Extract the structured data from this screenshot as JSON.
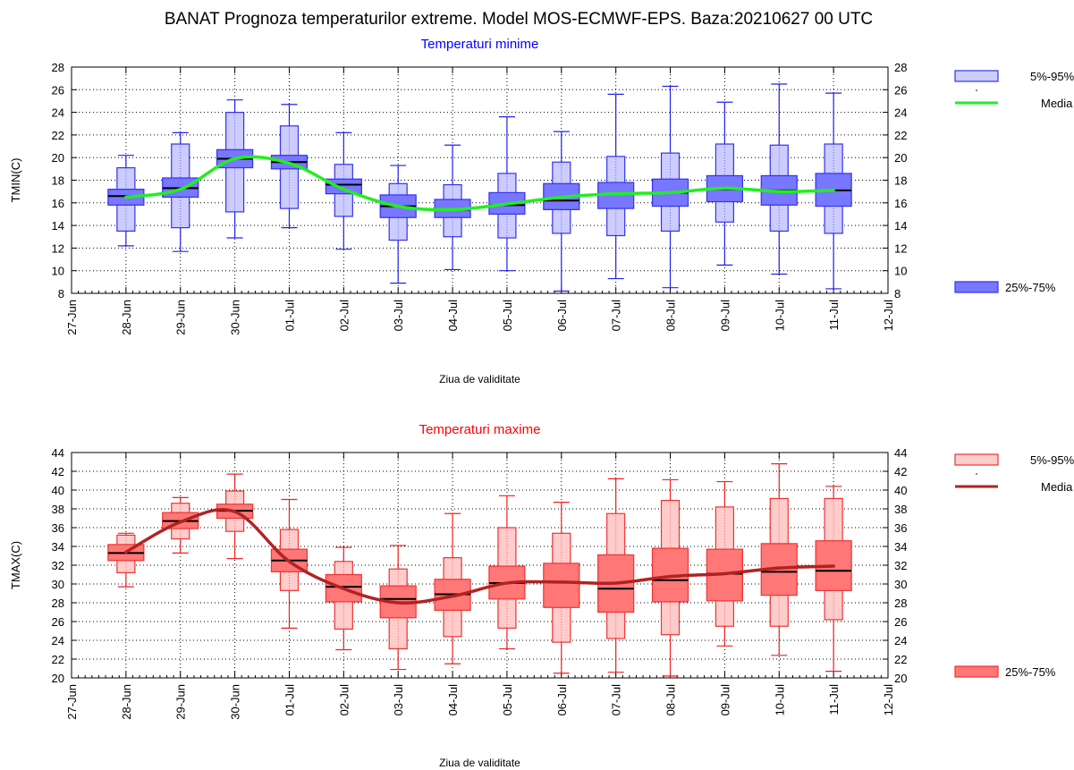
{
  "page_title": "BANAT  Prognoza temperaturilor extreme.  Model MOS-ECMWF-EPS. Baza:20210627 00 UTC",
  "chart_data": [
    {
      "type": "boxplot",
      "id": "tmin",
      "title": "Temperaturi minime",
      "title_color": "#0000ff",
      "xlabel": "Ziua de validitate",
      "ylabel": "TMIN(C)",
      "ylim": [
        8,
        28
      ],
      "yticks": [
        8,
        10,
        12,
        14,
        16,
        18,
        20,
        22,
        24,
        26,
        28
      ],
      "x_tick_labels": [
        "27-Jun",
        "28-Jun",
        "29-Jun",
        "30-Jun",
        "01-Jul",
        "02-Jul",
        "03-Jul",
        "04-Jul",
        "05-Jul",
        "06-Jul",
        "07-Jul",
        "08-Jul",
        "09-Jul",
        "10-Jul",
        "11-Jul",
        "12-Jul"
      ],
      "grid": true,
      "legend": [
        "5%-95%",
        "Media",
        "25%-75%"
      ],
      "colors": {
        "outer_fill": "#ccccff",
        "inner_fill": "#7777ff",
        "edge": "#3333ee",
        "whisker": "#2222ee",
        "mean_line": "#22ee22",
        "median": "#000000"
      },
      "boxes": [
        {
          "date": "28-Jun",
          "min": 12.2,
          "p5": 13.5,
          "p25": 15.8,
          "median": 16.6,
          "p75": 17.2,
          "p95": 19.1,
          "max": 20.2,
          "mean": 16.5
        },
        {
          "date": "29-Jun",
          "min": 11.7,
          "p5": 13.8,
          "p25": 16.5,
          "median": 17.3,
          "p75": 18.2,
          "p95": 21.2,
          "max": 22.2,
          "mean": 17.2
        },
        {
          "date": "30-Jun",
          "min": 12.9,
          "p5": 15.2,
          "p25": 19.1,
          "median": 19.9,
          "p75": 20.7,
          "p95": 24.0,
          "max": 25.1,
          "mean": 19.9
        },
        {
          "date": "01-Jul",
          "min": 13.8,
          "p5": 15.5,
          "p25": 19.0,
          "median": 19.6,
          "p75": 20.2,
          "p95": 22.8,
          "max": 24.7,
          "mean": 19.5
        },
        {
          "date": "02-Jul",
          "min": 11.9,
          "p5": 14.8,
          "p25": 16.8,
          "median": 17.6,
          "p75": 18.1,
          "p95": 19.4,
          "max": 22.2,
          "mean": 17.2
        },
        {
          "date": "03-Jul",
          "min": 8.9,
          "p5": 12.7,
          "p25": 14.7,
          "median": 15.7,
          "p75": 16.7,
          "p95": 17.7,
          "max": 19.3,
          "mean": 15.7
        },
        {
          "date": "04-Jul",
          "min": 10.1,
          "p5": 13.0,
          "p25": 14.7,
          "median": 15.4,
          "p75": 16.3,
          "p95": 17.6,
          "max": 21.1,
          "mean": 15.4
        },
        {
          "date": "05-Jul",
          "min": 10.0,
          "p5": 12.9,
          "p25": 15.0,
          "median": 15.8,
          "p75": 16.9,
          "p95": 18.6,
          "max": 23.6,
          "mean": 15.9
        },
        {
          "date": "06-Jul",
          "min": 8.2,
          "p5": 13.3,
          "p25": 15.4,
          "median": 16.2,
          "p75": 17.7,
          "p95": 19.6,
          "max": 22.3,
          "mean": 16.5
        },
        {
          "date": "07-Jul",
          "min": 9.3,
          "p5": 13.1,
          "p25": 15.5,
          "median": 16.8,
          "p75": 17.8,
          "p95": 20.1,
          "max": 25.6,
          "mean": 16.8
        },
        {
          "date": "08-Jul",
          "min": 8.5,
          "p5": 13.5,
          "p25": 15.7,
          "median": 16.9,
          "p75": 18.1,
          "p95": 20.4,
          "max": 26.3,
          "mean": 16.9
        },
        {
          "date": "09-Jul",
          "min": 10.5,
          "p5": 14.3,
          "p25": 16.1,
          "median": 17.2,
          "p75": 18.4,
          "p95": 21.2,
          "max": 24.9,
          "mean": 17.3
        },
        {
          "date": "10-Jul",
          "min": 9.7,
          "p5": 13.5,
          "p25": 15.8,
          "median": 17.1,
          "p75": 18.4,
          "p95": 21.1,
          "max": 26.5,
          "mean": 17.0
        },
        {
          "date": "11-Jul",
          "min": 8.4,
          "p5": 13.3,
          "p25": 15.7,
          "median": 17.1,
          "p75": 18.6,
          "p95": 21.2,
          "max": 25.7,
          "mean": 17.1
        }
      ]
    },
    {
      "type": "boxplot",
      "id": "tmax",
      "title": "Temperaturi maxime",
      "title_color": "#ff0000",
      "xlabel": "Ziua de validitate",
      "ylabel": "TMAX(C)",
      "ylim": [
        20,
        44
      ],
      "yticks": [
        20,
        22,
        24,
        26,
        28,
        30,
        32,
        34,
        36,
        38,
        40,
        42,
        44
      ],
      "x_tick_labels": [
        "27-Jun",
        "28-Jun",
        "29-Jun",
        "30-Jun",
        "01-Jul",
        "02-Jul",
        "03-Jul",
        "04-Jul",
        "05-Jul",
        "06-Jul",
        "07-Jul",
        "08-Jul",
        "09-Jul",
        "10-Jul",
        "11-Jul",
        "12-Jul"
      ],
      "grid": true,
      "legend": [
        "5%-95%",
        "Media",
        "25%-75%"
      ],
      "colors": {
        "outer_fill": "#ffcccc",
        "inner_fill": "#ff7777",
        "edge": "#ee3333",
        "whisker": "#ee2222",
        "mean_line": "#b22222",
        "median": "#000000"
      },
      "boxes": [
        {
          "date": "28-Jun",
          "min": 29.7,
          "p5": 31.2,
          "p25": 32.5,
          "median": 33.3,
          "p75": 34.2,
          "p95": 35.2,
          "max": 35.4,
          "mean": 33.4
        },
        {
          "date": "29-Jun",
          "min": 33.3,
          "p5": 34.8,
          "p25": 35.9,
          "median": 36.7,
          "p75": 37.6,
          "p95": 38.6,
          "max": 39.2,
          "mean": 36.6
        },
        {
          "date": "30-Jun",
          "min": 32.7,
          "p5": 35.6,
          "p25": 37.0,
          "median": 37.8,
          "p75": 38.5,
          "p95": 39.9,
          "max": 41.7,
          "mean": 37.7
        },
        {
          "date": "01-Jul",
          "min": 25.3,
          "p5": 29.3,
          "p25": 31.3,
          "median": 32.5,
          "p75": 33.7,
          "p95": 35.8,
          "max": 39.0,
          "mean": 32.4
        },
        {
          "date": "02-Jul",
          "min": 23.0,
          "p5": 25.2,
          "p25": 28.1,
          "median": 29.7,
          "p75": 31.0,
          "p95": 32.4,
          "max": 33.9,
          "mean": 29.5
        },
        {
          "date": "03-Jul",
          "min": 20.9,
          "p5": 23.1,
          "p25": 26.4,
          "median": 28.4,
          "p75": 29.8,
          "p95": 31.6,
          "max": 34.1,
          "mean": 28.0
        },
        {
          "date": "04-Jul",
          "min": 21.5,
          "p5": 24.4,
          "p25": 27.2,
          "median": 28.9,
          "p75": 30.5,
          "p95": 32.8,
          "max": 37.5,
          "mean": 28.7
        },
        {
          "date": "05-Jul",
          "min": 23.1,
          "p5": 25.3,
          "p25": 28.4,
          "median": 30.1,
          "p75": 31.9,
          "p95": 36.0,
          "max": 39.4,
          "mean": 30.1
        },
        {
          "date": "06-Jul",
          "min": 20.5,
          "p5": 23.8,
          "p25": 27.5,
          "median": 30.2,
          "p75": 32.2,
          "p95": 35.4,
          "max": 38.7,
          "mean": 30.2
        },
        {
          "date": "07-Jul",
          "min": 20.6,
          "p5": 24.2,
          "p25": 27.0,
          "median": 29.5,
          "p75": 33.1,
          "p95": 37.5,
          "max": 41.2,
          "mean": 30.1
        },
        {
          "date": "08-Jul",
          "min": 20.2,
          "p5": 24.6,
          "p25": 28.1,
          "median": 30.4,
          "p75": 33.8,
          "p95": 38.9,
          "max": 41.1,
          "mean": 30.8
        },
        {
          "date": "09-Jul",
          "min": 23.4,
          "p5": 25.5,
          "p25": 28.2,
          "median": 31.1,
          "p75": 33.7,
          "p95": 38.2,
          "max": 40.9,
          "mean": 31.1
        },
        {
          "date": "10-Jul",
          "min": 22.4,
          "p5": 25.5,
          "p25": 28.8,
          "median": 31.3,
          "p75": 34.3,
          "p95": 39.1,
          "max": 42.8,
          "mean": 31.7
        },
        {
          "date": "11-Jul",
          "min": 20.7,
          "p5": 26.2,
          "p25": 29.3,
          "median": 31.4,
          "p75": 34.6,
          "p95": 39.1,
          "max": 40.4,
          "mean": 31.9
        }
      ]
    }
  ]
}
